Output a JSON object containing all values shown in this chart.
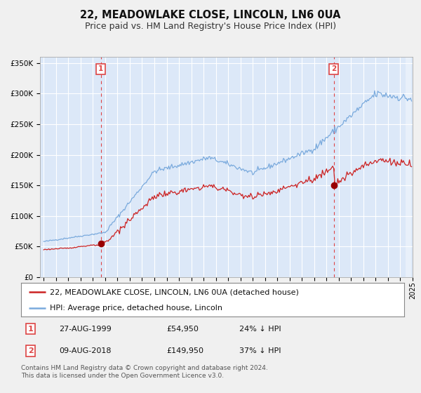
{
  "title": "22, MEADOWLAKE CLOSE, LINCOLN, LN6 0UA",
  "subtitle": "Price paid vs. HM Land Registry's House Price Index (HPI)",
  "ylim": [
    0,
    360000
  ],
  "yticks": [
    0,
    50000,
    100000,
    150000,
    200000,
    250000,
    300000,
    350000
  ],
  "xstart_year": 1995,
  "xend_year": 2025,
  "fig_bg_color": "#f0f0f0",
  "plot_bg_color": "#dce8f8",
  "grid_color": "#ffffff",
  "hpi_color": "#7aaadd",
  "price_color": "#cc2222",
  "marker_color": "#990000",
  "vline_color": "#dd4444",
  "sale1_year": 1999.65,
  "sale1_price": 54950,
  "sale2_year": 2018.6,
  "sale2_price": 149950,
  "legend_label1": "22, MEADOWLAKE CLOSE, LINCOLN, LN6 0UA (detached house)",
  "legend_label2": "HPI: Average price, detached house, Lincoln",
  "table_row1": [
    "1",
    "27-AUG-1999",
    "£54,950",
    "24% ↓ HPI"
  ],
  "table_row2": [
    "2",
    "09-AUG-2018",
    "£149,950",
    "37% ↓ HPI"
  ],
  "footer": "Contains HM Land Registry data © Crown copyright and database right 2024.\nThis data is licensed under the Open Government Licence v3.0.",
  "title_fontsize": 10.5,
  "subtitle_fontsize": 9,
  "tick_fontsize": 7.5,
  "legend_fontsize": 8,
  "table_fontsize": 8,
  "footer_fontsize": 6.5
}
